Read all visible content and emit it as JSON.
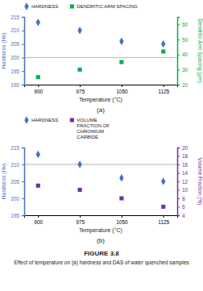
{
  "title": "FIGURE 3.8",
  "subtitle": "Effect of temperature on (a) hardness and DAS of water quenched samples",
  "chart_data": [
    {
      "type": "scatter",
      "title": "(a)",
      "xlabel": "Temperature (°C)",
      "ylabel": "Hardness (Hv)",
      "y2label": "Dendritic Arm Spacing (μm)",
      "x": [
        900,
        975,
        1050,
        1125
      ],
      "xlim": [
        875,
        1150
      ],
      "xticks": [
        900,
        975,
        1050,
        1125
      ],
      "ylim": [
        190,
        215
      ],
      "yticks": [
        190,
        195,
        200,
        205,
        210,
        215
      ],
      "y2lim": [
        20,
        65
      ],
      "y2ticks": [
        20,
        30,
        40,
        50,
        60
      ],
      "legend": "top",
      "annotations": [
        {
          "y": 200,
          "color": "gray"
        }
      ],
      "series": [
        {
          "name": "HARDNESS",
          "color": "#4472C4",
          "marker": "diamond",
          "values": [
            213,
            210,
            206,
            205
          ]
        },
        {
          "name": "DENDRITIC ARM SPACING",
          "color": "#00B050",
          "marker": "square",
          "axis": "y2",
          "values": [
            25,
            30,
            35,
            42
          ]
        }
      ]
    },
    {
      "type": "scatter",
      "title": "(b)",
      "xlabel": "Temperature (°C)",
      "ylabel": "Hardness (Hv)",
      "y2label": "Volume Fraction (%)",
      "x": [
        900,
        975,
        1050,
        1125
      ],
      "xlim": [
        875,
        1150
      ],
      "xticks": [
        900,
        975,
        1050,
        1125
      ],
      "ylim": [
        195,
        215
      ],
      "yticks": [
        195,
        200,
        205,
        210,
        215
      ],
      "y2lim": [
        4,
        20
      ],
      "y2ticks": [
        4,
        6,
        8,
        10,
        12,
        14,
        16,
        18,
        20
      ],
      "legend": "top",
      "annotations": [
        {
          "y": 210,
          "color": "gray"
        }
      ],
      "series": [
        {
          "name": "HARDNESS",
          "color": "#4472C4",
          "marker": "diamond",
          "values": [
            213,
            210,
            206,
            205
          ]
        },
        {
          "name": "VOLUME\nFRACTION OF\nCHROMIUM\nCARBIDE",
          "color": "#7030A0",
          "marker": "square",
          "axis": "y2",
          "values": [
            11,
            10,
            8,
            6
          ]
        }
      ]
    }
  ]
}
